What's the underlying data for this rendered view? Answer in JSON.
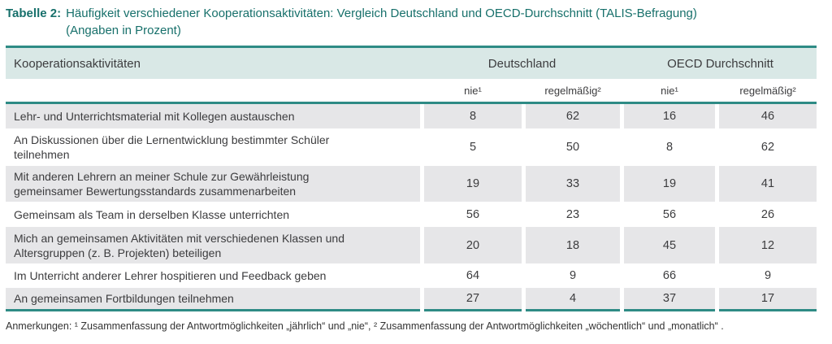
{
  "title": {
    "label": "Tabelle 2:",
    "line1": "Häufigkeit verschiedener Kooperationsaktivitäten: Vergleich Deutschland und OECD-Durchschnitt (TALIS-Befragung)",
    "line2": "(Angaben in Prozent)"
  },
  "table": {
    "header": {
      "col1": "Kooperationsaktivitäten",
      "group_de": "Deutschland",
      "group_oecd": "OECD Durchschnitt"
    },
    "subcols": [
      "nie¹",
      "regelmäßig²",
      "nie¹",
      "regelmäßig²"
    ],
    "rows": [
      {
        "label": "Lehr- und Unterrichtsmaterial mit Kollegen austauschen",
        "values": [
          "8",
          "62",
          "16",
          "46"
        ]
      },
      {
        "label": "An Diskussionen über die Lernentwicklung bestimmter Schüler teilnehmen",
        "values": [
          "5",
          "50",
          "8",
          "62"
        ]
      },
      {
        "label": "Mit anderen Lehrern an meiner Schule zur Gewährleistung gemeinsamer Bewertungsstandards zusammenarbeiten",
        "values": [
          "19",
          "33",
          "19",
          "41"
        ]
      },
      {
        "label": "Gemeinsam als Team in derselben Klasse unterrichten",
        "values": [
          "56",
          "23",
          "56",
          "26"
        ]
      },
      {
        "label": "Mich an gemeinsamen Aktivitäten mit verschiedenen Klassen und Altersgruppen (z. B. Projekten) beteiligen",
        "values": [
          "20",
          "18",
          "45",
          "12"
        ]
      },
      {
        "label": "Im Unterricht anderer Lehrer hospitieren und Feedback geben",
        "values": [
          "64",
          "9",
          "66",
          "9"
        ]
      },
      {
        "label": "An gemeinsamen Fortbildungen teilnehmen",
        "values": [
          "27",
          "4",
          "37",
          "17"
        ]
      }
    ]
  },
  "footnote": "Anmerkungen: ¹ Zusammenfassung der Antwortmöglichkeiten „jährlich“ und „nie“, ² Zusammenfassung der Antwortmöglichkeiten „wöchentlich“ und „monatlich“ .",
  "colors": {
    "accent_teal": "#2e8b85",
    "title_teal": "#17706b",
    "header_band": "#d9e8e6",
    "row_gray": "#e6e6e8",
    "text": "#3c3c3e"
  }
}
